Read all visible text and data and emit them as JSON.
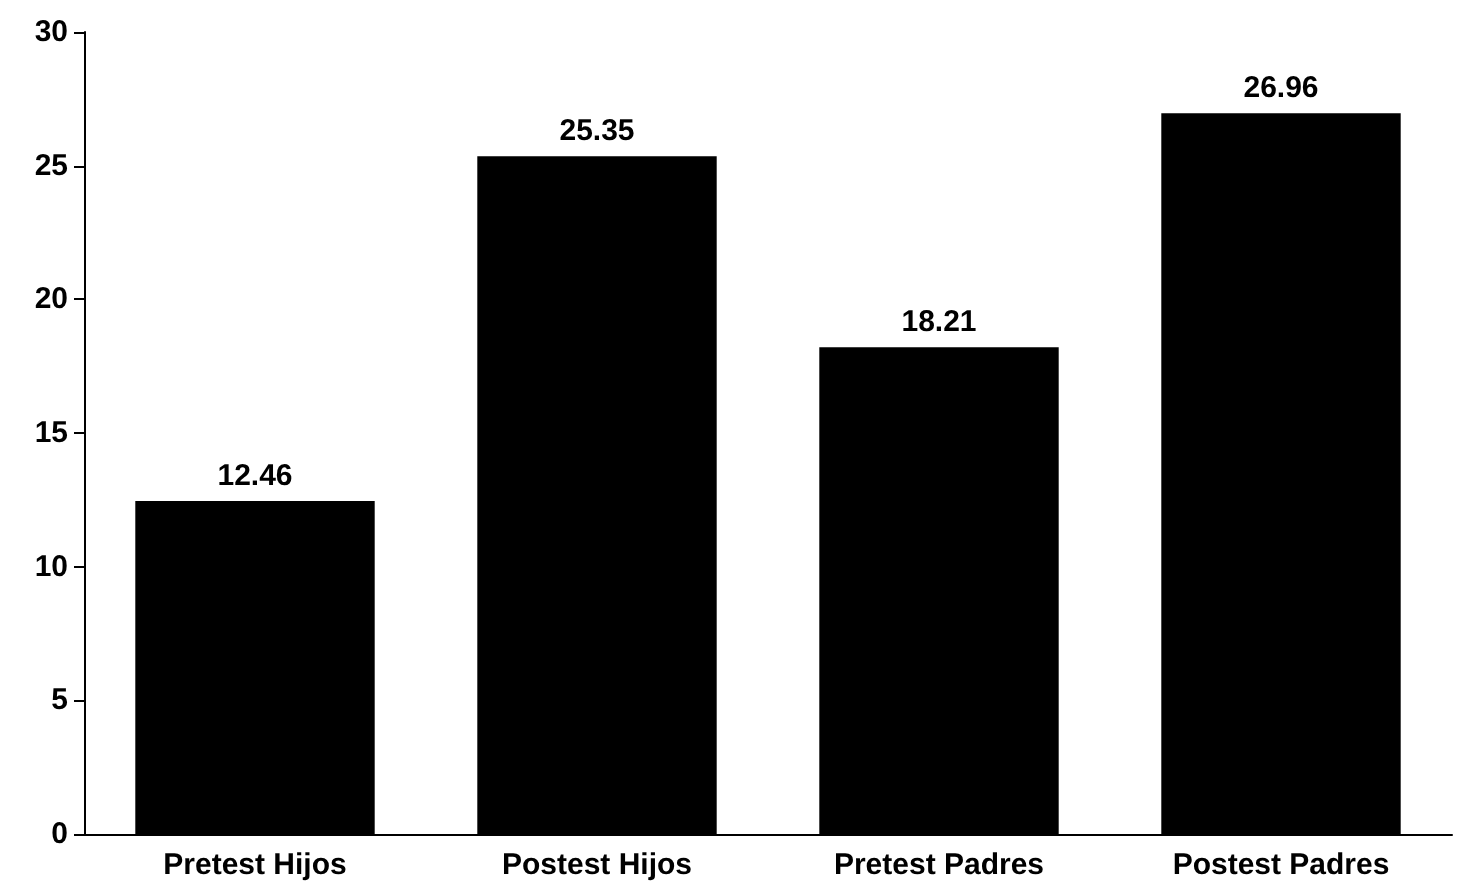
{
  "chart_data": {
    "type": "bar",
    "categories": [
      "Pretest Hijos",
      "Postest Hijos",
      "Pretest Padres",
      "Postest Padres"
    ],
    "values": [
      12.46,
      25.35,
      18.21,
      26.96
    ],
    "color": "#000000",
    "ylim": [
      0,
      30
    ],
    "yticks": [
      0,
      5,
      10,
      15,
      20,
      25,
      30
    ],
    "grid": false,
    "data_labels": true
  }
}
